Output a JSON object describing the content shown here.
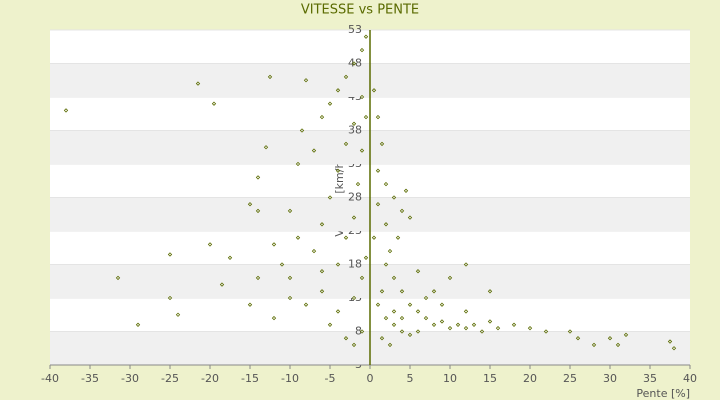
{
  "chart_data": {
    "type": "scatter",
    "title": "VITESSE vs PENTE",
    "x_label": "Pente [%]",
    "y_label": "Vitesse [km/h]",
    "xlim": [
      -40,
      40
    ],
    "xticks": [
      -40,
      -35,
      -30,
      -25,
      -20,
      -15,
      -10,
      -5,
      0,
      5,
      10,
      15,
      20,
      25,
      30,
      35,
      40
    ],
    "ylim": [
      3,
      53
    ],
    "yticks": [
      3,
      8,
      13,
      18,
      23,
      28,
      33,
      38,
      43,
      48,
      53
    ],
    "grid": true,
    "color": "#5a6b00",
    "series": [
      {
        "name": "Vitesse",
        "color": "#5a6b00",
        "x": [
          -38,
          -21.5,
          -19.5,
          -12.5,
          -8,
          -13,
          -14,
          -15,
          -14,
          -20,
          -17.5,
          -25,
          -31.5,
          -25,
          -24,
          -29,
          -18.5,
          -15,
          -12,
          -10,
          -9,
          -8.5,
          -7,
          -6,
          -5,
          -4,
          -3,
          -2,
          -1,
          -0.5,
          -10,
          -8,
          -6,
          -4,
          -3,
          -2,
          -1.5,
          -1,
          -0.5,
          -7,
          -6,
          -5,
          -4,
          -3,
          -2,
          -1,
          -5,
          -3,
          -2,
          -1,
          -4,
          -2,
          -1,
          -0.5,
          -6,
          -9,
          -11,
          -10,
          -12,
          -14,
          0.5,
          1,
          1.5,
          1,
          2,
          3,
          4,
          5,
          4.5,
          3.5,
          2.5,
          2,
          3,
          4,
          5,
          6,
          7,
          8,
          9,
          10,
          11,
          12,
          13,
          14,
          15,
          16,
          18,
          20,
          22,
          25,
          30,
          31,
          32,
          37.5,
          38,
          12,
          10,
          8,
          6,
          7,
          9,
          2,
          3,
          4,
          5,
          2.5,
          1.5,
          1,
          1.5,
          3,
          4,
          6,
          2,
          1,
          0.5,
          15,
          12,
          26,
          28
        ],
        "values": [
          41,
          45,
          42,
          46,
          45.5,
          35.5,
          31,
          27,
          26,
          21,
          19,
          19.5,
          16,
          13,
          10.5,
          9,
          15,
          12,
          21,
          26,
          33,
          38,
          35,
          40,
          42,
          44,
          46,
          48,
          50,
          52,
          16,
          12,
          14,
          18,
          22,
          25,
          30,
          35,
          40,
          20,
          24,
          28,
          32,
          36,
          39,
          43,
          9,
          7,
          6,
          8,
          11,
          13,
          16,
          19,
          17,
          22,
          18,
          13,
          10,
          16,
          44,
          40,
          36,
          32,
          30,
          28,
          26,
          25,
          29,
          22,
          20,
          18,
          16,
          14,
          12,
          11,
          10,
          9,
          9.5,
          8.5,
          9,
          8.5,
          9,
          8,
          9.5,
          8.5,
          9,
          8.5,
          8,
          8,
          7,
          6,
          7.5,
          6.5,
          5.5,
          18,
          16,
          14,
          17,
          13,
          12,
          10,
          9,
          8,
          7.5,
          6,
          7,
          12,
          14,
          11,
          10,
          8,
          24,
          27,
          22,
          14,
          11,
          7,
          6
        ]
      }
    ]
  }
}
